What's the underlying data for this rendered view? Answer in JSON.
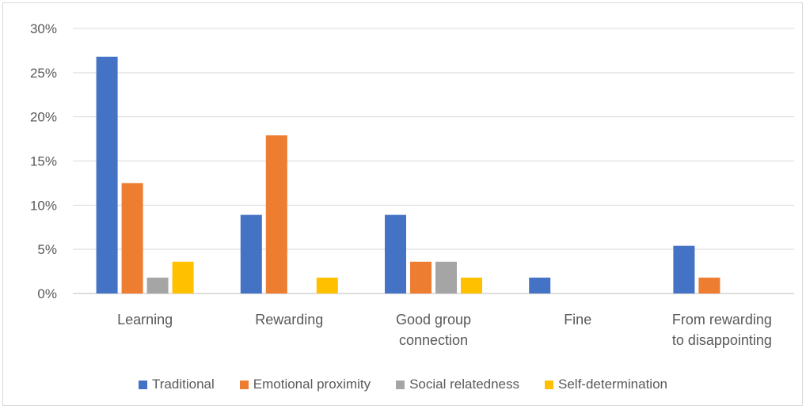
{
  "chart_data": {
    "type": "bar",
    "categories": [
      [
        "Learning"
      ],
      [
        "Rewarding"
      ],
      [
        "Good group",
        "connection"
      ],
      [
        "Fine"
      ],
      [
        "From rewarding",
        "to disappointing"
      ]
    ],
    "series": [
      {
        "name": "Traditional",
        "color": "#4472C4",
        "values": [
          26.8,
          8.9,
          8.9,
          1.8,
          5.4
        ]
      },
      {
        "name": "Emotional proximity",
        "color": "#ED7D31",
        "values": [
          12.5,
          17.9,
          3.6,
          0,
          1.8
        ]
      },
      {
        "name": "Social relatedness",
        "color": "#A5A5A5",
        "values": [
          1.8,
          0,
          3.6,
          0,
          0
        ]
      },
      {
        "name": "Self-determination",
        "color": "#FFC000",
        "values": [
          3.6,
          1.8,
          1.8,
          0,
          0
        ]
      }
    ],
    "ylim": [
      0,
      30
    ],
    "yticks": [
      "0%",
      "5%",
      "10%",
      "15%",
      "20%",
      "25%",
      "30%"
    ],
    "grid": true,
    "legend_position": "bottom"
  }
}
